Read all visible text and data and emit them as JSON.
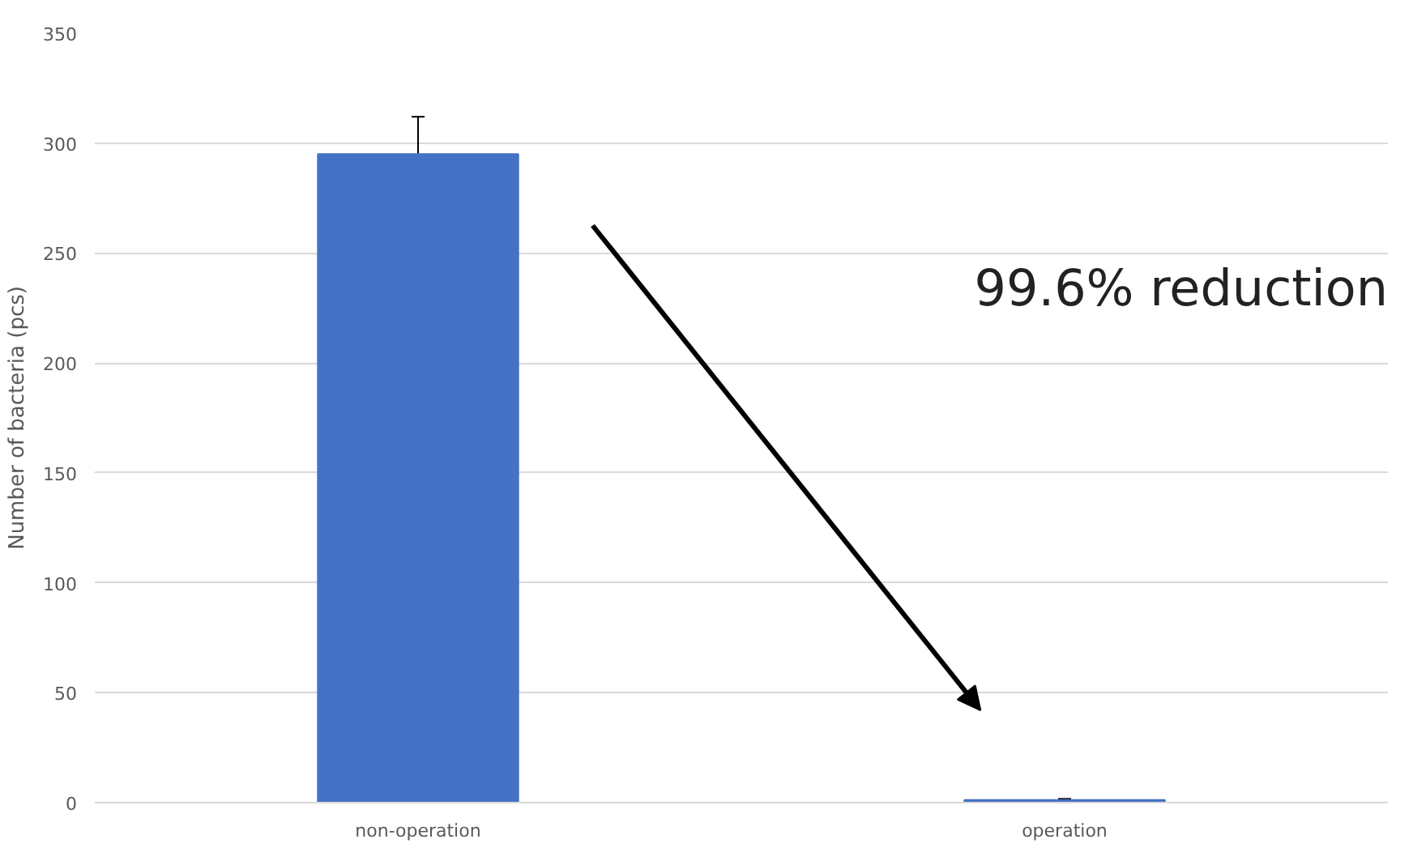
{
  "chart_data": {
    "type": "bar",
    "categories": [
      "non-operation",
      "operation"
    ],
    "values": [
      295,
      1.2
    ],
    "errors": [
      17,
      0.5
    ],
    "color": "#4472c4",
    "ylabel": "Number of bacteria (pcs)",
    "ylim": [
      0,
      350
    ],
    "yticks": [
      0,
      50,
      100,
      150,
      200,
      250,
      300,
      350
    ],
    "grid": "y",
    "annotations": [
      "99.6% reduction"
    ]
  }
}
